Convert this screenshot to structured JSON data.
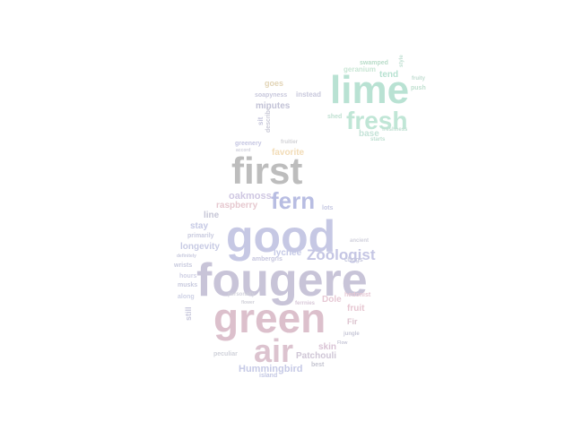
{
  "words": [
    {
      "text": "fougere",
      "color": "#c8c4d8"
    },
    {
      "text": "good",
      "color": "#c6c8e4"
    },
    {
      "text": "green",
      "color": "#dcc0cc"
    },
    {
      "text": "first",
      "color": "#bdbdbd"
    },
    {
      "text": "lime",
      "color": "#b9e2d3"
    },
    {
      "text": "fresh",
      "color": "#c0e6d6"
    },
    {
      "text": "fern",
      "color": "#b8bde2"
    },
    {
      "text": "air",
      "color": "#dcc3cf"
    },
    {
      "text": "Zoologist",
      "color": "#c5c6e4"
    },
    {
      "text": "Hummingbird",
      "color": "#c6cae6"
    },
    {
      "text": "Patchouli",
      "color": "#cfc6d6"
    },
    {
      "text": "oakmoss",
      "color": "#cfc7e2"
    },
    {
      "text": "raspberry",
      "color": "#e6c8cf"
    },
    {
      "text": "longevity",
      "color": "#c8cbe4"
    },
    {
      "text": "minutes",
      "color": "#c2c2d6"
    },
    {
      "text": "favorite",
      "color": "#f2dcb7"
    },
    {
      "text": "lychee",
      "color": "#c5c9e6"
    },
    {
      "text": "stay",
      "color": "#c5c9e4"
    },
    {
      "text": "line",
      "color": "#c6c6d6"
    },
    {
      "text": "fruit",
      "color": "#e6c6d1"
    },
    {
      "text": "skin",
      "color": "#d9c3d5"
    },
    {
      "text": "base",
      "color": "#c5e3d8"
    },
    {
      "text": "tend",
      "color": "#b8e2d2"
    },
    {
      "text": "goes",
      "color": "#e2d4b6"
    },
    {
      "text": "soapyness",
      "color": "#c8c8dc"
    },
    {
      "text": "instead",
      "color": "#c8c8dc"
    },
    {
      "text": "swamped",
      "color": "#b9dcc9"
    },
    {
      "text": "geranium",
      "color": "#c9e6d5"
    },
    {
      "text": "push",
      "color": "#c0e0d0"
    },
    {
      "text": "fruity",
      "color": "#c0dcd0"
    },
    {
      "text": "greenery",
      "color": "#c5c6e2"
    },
    {
      "text": "hours",
      "color": "#cfd0e4"
    },
    {
      "text": "wrists",
      "color": "#c8cade"
    },
    {
      "text": "musks",
      "color": "#c8cade"
    },
    {
      "text": "along",
      "color": "#cfd2e6"
    },
    {
      "text": "still",
      "color": "#c8c8dc"
    },
    {
      "text": "island",
      "color": "#c4c8e4"
    },
    {
      "text": "best",
      "color": "#c4c4d0"
    },
    {
      "text": "peculiar",
      "color": "#d0d2da"
    },
    {
      "text": "primarily",
      "color": "#c8cade"
    },
    {
      "text": "chugs",
      "color": "#c6c8de"
    },
    {
      "text": "lots",
      "color": "#c6c8e2"
    },
    {
      "text": "ambergris",
      "color": "#c6c6de"
    },
    {
      "text": "Fir",
      "color": "#dcc3cf"
    },
    {
      "text": "Dole",
      "color": "#e6c8d4"
    },
    {
      "text": "ferrnies",
      "color": "#d8c8d8"
    },
    {
      "text": "jungle",
      "color": "#c8c8d8"
    },
    {
      "text": "hedonist",
      "color": "#e6c8d4"
    },
    {
      "text": "shed",
      "color": "#c0e0d2"
    },
    {
      "text": "starts",
      "color": "#c0e0d2"
    },
    {
      "text": "freshness",
      "color": "#c0e0d2"
    },
    {
      "text": "style",
      "color": "#c0e0d2"
    },
    {
      "text": "definitely",
      "color": "#c8cade"
    },
    {
      "text": "personally",
      "color": "#d2d2dc"
    },
    {
      "text": "flower",
      "color": "#d0d0d8"
    },
    {
      "text": "ancient",
      "color": "#d0d0dc"
    },
    {
      "text": "Flow",
      "color": "#c8c8d8"
    },
    {
      "text": "describe",
      "color": "#c8c8d6"
    },
    {
      "text": "fruitier",
      "color": "#d2d2d6"
    },
    {
      "text": "accord",
      "color": "#d0d0dc"
    },
    {
      "text": "sit",
      "color": "#c6c6dc"
    }
  ]
}
